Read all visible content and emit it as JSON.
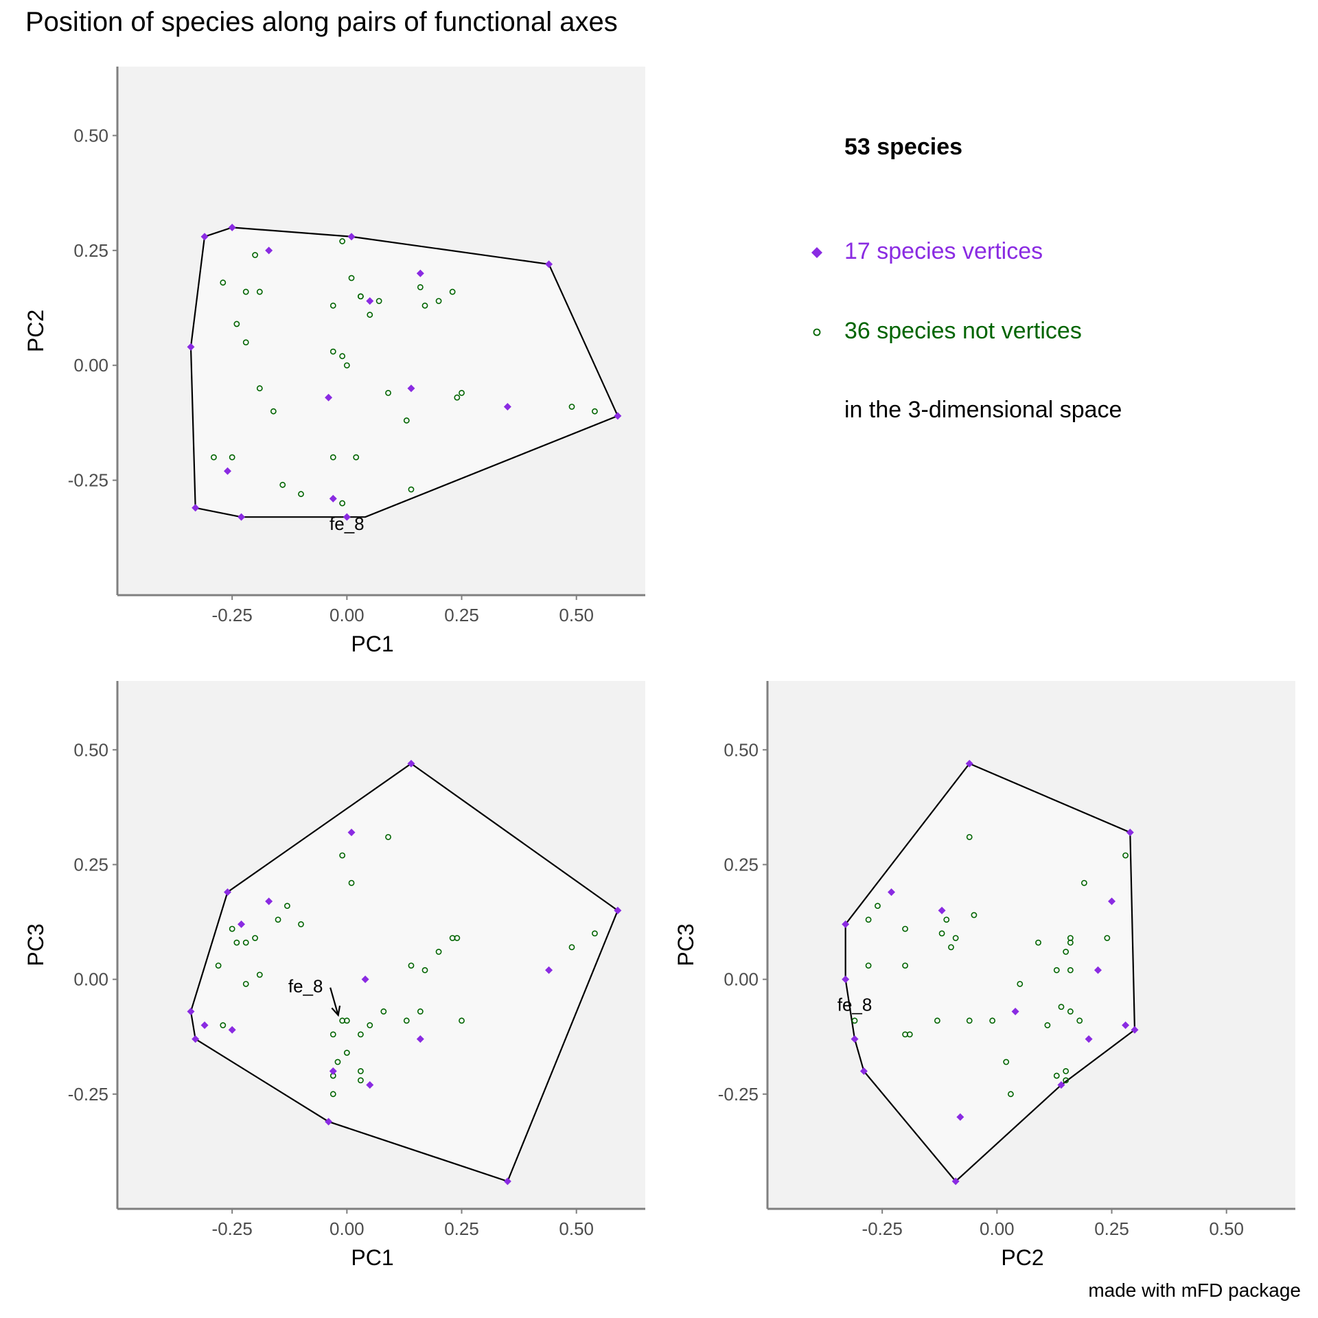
{
  "title": "Position of species along pairs of functional axes",
  "caption": "made with mFD package",
  "legend": {
    "title": "53 species",
    "vertices_label": "17 species vertices",
    "nonvertices_label": "36 species not vertices",
    "space_label": "in the 3-dimensional space"
  },
  "colors": {
    "vertex": "#8A2BE2",
    "nonvertex": "#006400",
    "panel_bg": "#F2F2F2",
    "hull_fill": "#F8F8F8",
    "hull_stroke": "#000000",
    "axis": "#7F7F7F"
  },
  "chart_data": [
    {
      "type": "scatter",
      "xlabel": "PC1",
      "ylabel": "PC2",
      "xlim": [
        -0.5,
        0.65
      ],
      "ylim": [
        -0.5,
        0.65
      ],
      "xticks": [
        -0.25,
        0.0,
        0.25,
        0.5
      ],
      "yticks": [
        -0.25,
        0.0,
        0.25,
        0.5
      ],
      "xtick_labels": [
        "-0.25",
        "0.00",
        "0.25",
        "0.50"
      ],
      "ytick_labels": [
        "-0.25",
        "0.00",
        "0.25",
        "0.50"
      ],
      "hull": [
        [
          -0.25,
          0.3
        ],
        [
          0.01,
          0.28
        ],
        [
          0.44,
          0.22
        ],
        [
          0.59,
          -0.11
        ],
        [
          0.04,
          -0.33
        ],
        [
          -0.23,
          -0.33
        ],
        [
          -0.33,
          -0.31
        ],
        [
          -0.34,
          0.04
        ],
        [
          -0.31,
          0.28
        ]
      ],
      "vertices": [
        [
          -0.25,
          0.3
        ],
        [
          0.01,
          0.28
        ],
        [
          0.44,
          0.22
        ],
        [
          0.59,
          -0.11
        ],
        [
          -0.23,
          -0.33
        ],
        [
          -0.33,
          -0.31
        ],
        [
          -0.34,
          0.04
        ],
        [
          -0.31,
          0.28
        ],
        [
          -0.17,
          0.25
        ],
        [
          0.16,
          0.2
        ],
        [
          0.05,
          0.14
        ],
        [
          -0.04,
          -0.07
        ],
        [
          0.14,
          -0.05
        ],
        [
          0.35,
          -0.09
        ],
        [
          -0.26,
          -0.23
        ],
        [
          -0.03,
          -0.29
        ],
        [
          0.0,
          -0.33
        ]
      ],
      "nonvertices": [
        [
          -0.2,
          0.24
        ],
        [
          -0.27,
          0.18
        ],
        [
          -0.22,
          0.16
        ],
        [
          -0.19,
          0.16
        ],
        [
          -0.24,
          0.09
        ],
        [
          -0.22,
          0.05
        ],
        [
          -0.01,
          0.27
        ],
        [
          0.01,
          0.19
        ],
        [
          0.03,
          0.15
        ],
        [
          0.03,
          0.15
        ],
        [
          -0.03,
          0.13
        ],
        [
          0.07,
          0.14
        ],
        [
          0.05,
          0.11
        ],
        [
          0.16,
          0.17
        ],
        [
          0.17,
          0.13
        ],
        [
          0.2,
          0.14
        ],
        [
          0.23,
          0.16
        ],
        [
          -0.03,
          0.03
        ],
        [
          -0.01,
          0.02
        ],
        [
          0.0,
          0.0
        ],
        [
          -0.19,
          -0.05
        ],
        [
          -0.16,
          -0.1
        ],
        [
          0.09,
          -0.06
        ],
        [
          0.25,
          -0.06
        ],
        [
          0.24,
          -0.07
        ],
        [
          0.13,
          -0.12
        ],
        [
          0.49,
          -0.09
        ],
        [
          0.54,
          -0.1
        ],
        [
          -0.29,
          -0.2
        ],
        [
          -0.25,
          -0.2
        ],
        [
          -0.03,
          -0.2
        ],
        [
          0.02,
          -0.2
        ],
        [
          -0.14,
          -0.26
        ],
        [
          -0.1,
          -0.28
        ],
        [
          0.14,
          -0.27
        ],
        [
          -0.01,
          -0.3
        ]
      ],
      "annotations": [
        {
          "text": "fe_8",
          "x": 0.0,
          "y": -0.33,
          "arrow": false
        }
      ]
    },
    {
      "type": "scatter",
      "xlabel": "PC1",
      "ylabel": "PC3",
      "xlim": [
        -0.5,
        0.65
      ],
      "ylim": [
        -0.5,
        0.65
      ],
      "xticks": [
        -0.25,
        0.0,
        0.25,
        0.5
      ],
      "yticks": [
        -0.25,
        0.0,
        0.25,
        0.5
      ],
      "xtick_labels": [
        "-0.25",
        "0.00",
        "0.25",
        "0.50"
      ],
      "ytick_labels": [
        "-0.25",
        "0.00",
        "0.25",
        "0.50"
      ],
      "hull": [
        [
          0.14,
          0.47
        ],
        [
          0.59,
          0.15
        ],
        [
          0.35,
          -0.44
        ],
        [
          -0.04,
          -0.31
        ],
        [
          -0.33,
          -0.13
        ],
        [
          -0.34,
          -0.07
        ],
        [
          -0.26,
          0.19
        ]
      ],
      "vertices": [
        [
          0.14,
          0.47
        ],
        [
          0.59,
          0.15
        ],
        [
          0.35,
          -0.44
        ],
        [
          -0.04,
          -0.31
        ],
        [
          -0.33,
          -0.13
        ],
        [
          -0.34,
          -0.07
        ],
        [
          -0.26,
          0.19
        ],
        [
          0.01,
          0.32
        ],
        [
          -0.17,
          0.17
        ],
        [
          -0.23,
          0.12
        ],
        [
          0.04,
          0.0
        ],
        [
          0.44,
          0.02
        ],
        [
          -0.31,
          -0.1
        ],
        [
          -0.25,
          -0.11
        ],
        [
          0.16,
          -0.13
        ],
        [
          -0.03,
          -0.2
        ],
        [
          0.05,
          -0.23
        ]
      ],
      "nonvertices": [
        [
          0.09,
          0.31
        ],
        [
          -0.01,
          0.27
        ],
        [
          0.01,
          0.21
        ],
        [
          -0.13,
          0.16
        ],
        [
          -0.15,
          0.13
        ],
        [
          -0.1,
          0.12
        ],
        [
          -0.25,
          0.11
        ],
        [
          -0.24,
          0.08
        ],
        [
          -0.22,
          0.08
        ],
        [
          -0.2,
          0.09
        ],
        [
          -0.28,
          0.03
        ],
        [
          -0.19,
          0.01
        ],
        [
          -0.22,
          -0.01
        ],
        [
          0.14,
          0.03
        ],
        [
          0.17,
          0.02
        ],
        [
          0.2,
          0.06
        ],
        [
          0.23,
          0.09
        ],
        [
          0.24,
          0.09
        ],
        [
          0.49,
          0.07
        ],
        [
          0.54,
          0.1
        ],
        [
          -0.27,
          -0.1
        ],
        [
          -0.03,
          -0.12
        ],
        [
          0.0,
          -0.09
        ],
        [
          0.03,
          -0.12
        ],
        [
          0.05,
          -0.1
        ],
        [
          0.08,
          -0.07
        ],
        [
          0.13,
          -0.09
        ],
        [
          0.16,
          -0.07
        ],
        [
          0.25,
          -0.09
        ],
        [
          -0.02,
          -0.18
        ],
        [
          -0.03,
          -0.21
        ],
        [
          0.03,
          -0.2
        ],
        [
          0.03,
          -0.22
        ],
        [
          -0.03,
          -0.25
        ],
        [
          -0.01,
          -0.09
        ],
        [
          0.0,
          -0.16
        ]
      ],
      "annotations": [
        {
          "text": "fe_8",
          "x": -0.09,
          "y": 0.0,
          "arrow": true,
          "arrow_to": [
            -0.01,
            -0.09
          ]
        }
      ]
    },
    {
      "type": "scatter",
      "xlabel": "PC2",
      "ylabel": "PC3",
      "xlim": [
        -0.5,
        0.65
      ],
      "ylim": [
        -0.5,
        0.65
      ],
      "xticks": [
        -0.25,
        0.0,
        0.25,
        0.5
      ],
      "yticks": [
        -0.25,
        0.0,
        0.25,
        0.5
      ],
      "xtick_labels": [
        "-0.25",
        "0.00",
        "0.25",
        "0.50"
      ],
      "ytick_labels": [
        "-0.25",
        "0.00",
        "0.25",
        "0.50"
      ],
      "hull": [
        [
          -0.06,
          0.47
        ],
        [
          0.29,
          0.32
        ],
        [
          0.3,
          -0.11
        ],
        [
          0.14,
          -0.23
        ],
        [
          -0.09,
          -0.44
        ],
        [
          -0.29,
          -0.2
        ],
        [
          -0.31,
          -0.13
        ],
        [
          -0.33,
          0.0
        ],
        [
          -0.33,
          0.12
        ]
      ],
      "vertices": [
        [
          -0.06,
          0.47
        ],
        [
          0.29,
          0.32
        ],
        [
          0.3,
          -0.11
        ],
        [
          0.14,
          -0.23
        ],
        [
          -0.09,
          -0.44
        ],
        [
          -0.29,
          -0.2
        ],
        [
          -0.31,
          -0.13
        ],
        [
          -0.33,
          0.0
        ],
        [
          -0.33,
          0.12
        ],
        [
          -0.23,
          0.19
        ],
        [
          -0.12,
          0.15
        ],
        [
          0.25,
          0.17
        ],
        [
          0.22,
          0.02
        ],
        [
          0.28,
          -0.1
        ],
        [
          0.04,
          -0.07
        ],
        [
          0.2,
          -0.13
        ],
        [
          -0.08,
          -0.3
        ]
      ],
      "nonvertices": [
        [
          -0.06,
          0.31
        ],
        [
          0.28,
          0.27
        ],
        [
          0.19,
          0.21
        ],
        [
          -0.26,
          0.16
        ],
        [
          -0.28,
          0.13
        ],
        [
          -0.2,
          0.11
        ],
        [
          -0.11,
          0.13
        ],
        [
          -0.12,
          0.1
        ],
        [
          -0.05,
          0.14
        ],
        [
          -0.09,
          0.09
        ],
        [
          -0.1,
          0.07
        ],
        [
          0.09,
          0.08
        ],
        [
          0.15,
          0.06
        ],
        [
          0.16,
          0.09
        ],
        [
          0.16,
          0.08
        ],
        [
          0.24,
          0.09
        ],
        [
          -0.28,
          0.03
        ],
        [
          -0.2,
          0.03
        ],
        [
          0.13,
          0.02
        ],
        [
          0.16,
          0.02
        ],
        [
          0.05,
          -0.01
        ],
        [
          -0.2,
          -0.12
        ],
        [
          -0.19,
          -0.12
        ],
        [
          -0.13,
          -0.09
        ],
        [
          -0.06,
          -0.09
        ],
        [
          -0.01,
          -0.09
        ],
        [
          0.11,
          -0.1
        ],
        [
          0.14,
          -0.06
        ],
        [
          0.16,
          -0.07
        ],
        [
          0.18,
          -0.09
        ],
        [
          0.02,
          -0.18
        ],
        [
          0.13,
          -0.21
        ],
        [
          0.15,
          -0.2
        ],
        [
          0.15,
          -0.22
        ],
        [
          0.03,
          -0.25
        ],
        [
          -0.31,
          -0.09
        ]
      ],
      "annotations": [
        {
          "text": "fe_8",
          "x": -0.31,
          "y": -0.04,
          "arrow": false
        }
      ]
    }
  ]
}
